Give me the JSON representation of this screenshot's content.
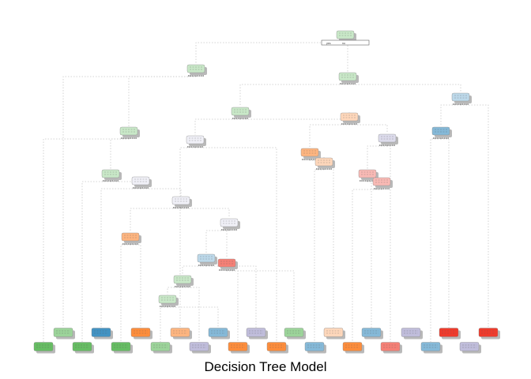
{
  "caption": "Decision Tree Model",
  "palette": {
    "A": "#66bd63",
    "B": "#4393c3",
    "C": "#fd8d3c",
    "D": "#9e9ac8",
    "E": "#ef3b2c"
  },
  "root_split": {
    "yes_label": "yes",
    "no_label": "no"
  },
  "nodes": [
    {
      "id": 1,
      "cls": "A",
      "tone": "light"
    },
    {
      "id": 2,
      "cls": "A",
      "tone": "light"
    },
    {
      "id": 3,
      "cls": "A",
      "tone": "light"
    },
    {
      "id": 4,
      "cls": "B",
      "tone": "light"
    },
    {
      "id": 5,
      "cls": "A",
      "tone": "light"
    },
    {
      "id": 6,
      "cls": "C",
      "tone": "light"
    },
    {
      "id": 7,
      "cls": "D",
      "tone": "light"
    },
    {
      "id": 8,
      "cls": "B",
      "tone": "mid"
    },
    {
      "id": 9,
      "cls": "A",
      "tone": "light"
    },
    {
      "id": 10,
      "cls": "D",
      "tone": "faint"
    },
    {
      "id": 11,
      "cls": "C",
      "tone": "mid"
    },
    {
      "id": 12,
      "cls": "C",
      "tone": "light"
    },
    {
      "id": 13,
      "cls": "E",
      "tone": "light"
    },
    {
      "id": 14,
      "cls": "E",
      "tone": "light"
    },
    {
      "id": 15,
      "cls": "A",
      "tone": "light"
    },
    {
      "id": 16,
      "cls": "D",
      "tone": "faint"
    },
    {
      "id": 17,
      "cls": "D",
      "tone": "faint"
    },
    {
      "id": 18,
      "cls": "C",
      "tone": "mid"
    },
    {
      "id": 19,
      "cls": "D",
      "tone": "faint"
    },
    {
      "id": 20,
      "cls": "B",
      "tone": "light"
    },
    {
      "id": 21,
      "cls": "E",
      "tone": "mid"
    },
    {
      "id": 22,
      "cls": "A",
      "tone": "light"
    },
    {
      "id": 23,
      "cls": "A",
      "tone": "light"
    }
  ],
  "leaves": [
    {
      "id": "L1",
      "cls": "A",
      "tone": "mid"
    },
    {
      "id": "L2",
      "cls": "B",
      "tone": "full"
    },
    {
      "id": "L3",
      "cls": "C",
      "tone": "full"
    },
    {
      "id": "L4",
      "cls": "C",
      "tone": "mid"
    },
    {
      "id": "L5",
      "cls": "B",
      "tone": "mid"
    },
    {
      "id": "L6",
      "cls": "D",
      "tone": "mid"
    },
    {
      "id": "L7",
      "cls": "A",
      "tone": "mid"
    },
    {
      "id": "L8",
      "cls": "C",
      "tone": "light"
    },
    {
      "id": "L9",
      "cls": "B",
      "tone": "mid"
    },
    {
      "id": "L10",
      "cls": "D",
      "tone": "mid"
    },
    {
      "id": "L11",
      "cls": "E",
      "tone": "full"
    },
    {
      "id": "L12",
      "cls": "E",
      "tone": "full"
    },
    {
      "id": "L13",
      "cls": "A",
      "tone": "full"
    },
    {
      "id": "L14",
      "cls": "A",
      "tone": "full"
    },
    {
      "id": "L15",
      "cls": "A",
      "tone": "full"
    },
    {
      "id": "L16",
      "cls": "A",
      "tone": "mid"
    },
    {
      "id": "L17",
      "cls": "D",
      "tone": "mid"
    },
    {
      "id": "L18",
      "cls": "C",
      "tone": "full"
    },
    {
      "id": "L19",
      "cls": "C",
      "tone": "full"
    },
    {
      "id": "L20",
      "cls": "B",
      "tone": "mid"
    },
    {
      "id": "L21",
      "cls": "C",
      "tone": "full"
    },
    {
      "id": "L22",
      "cls": "E",
      "tone": "mid"
    },
    {
      "id": "L23",
      "cls": "B",
      "tone": "mid"
    },
    {
      "id": "L24",
      "cls": "D",
      "tone": "mid"
    }
  ]
}
